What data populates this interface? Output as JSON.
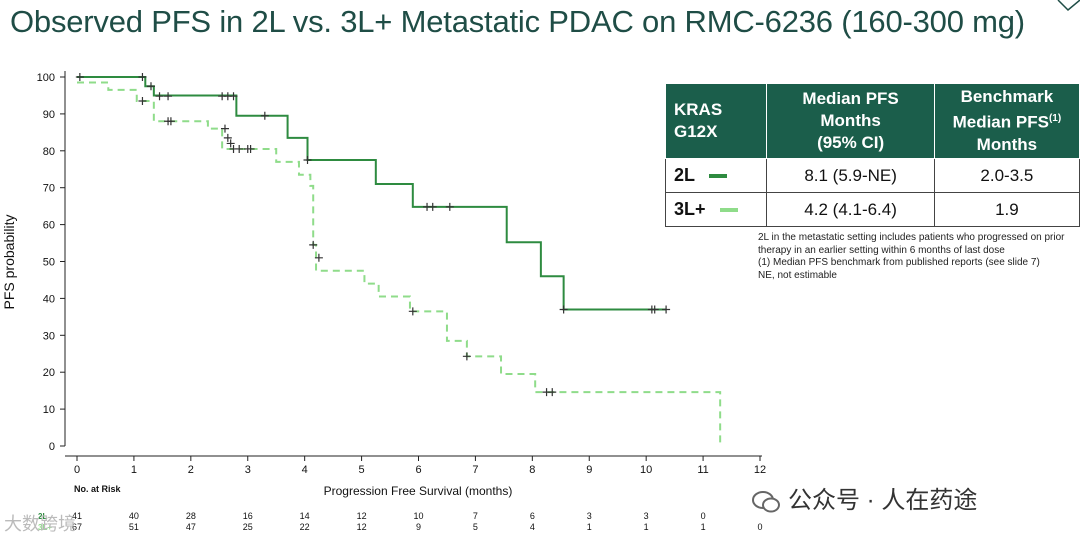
{
  "title": "Observed PFS in 2L vs. 3L+ Metastatic PDAC on RMC-6236 (160-300 mg)",
  "colors": {
    "title": "#1f4d46",
    "header_bg": "#1b5e4b",
    "line_2L": "#2e8b40",
    "line_3L": "#8fdc8a"
  },
  "table": {
    "headers": [
      "KRAS G12X",
      "Median PFS Months (95% CI)",
      "Benchmark Median PFS(1) Months"
    ],
    "rows": [
      {
        "arm": "2L",
        "median": "8.1 (5.9-NE)",
        "benchmark": "2.0-3.5"
      },
      {
        "arm": "3L+",
        "median": "4.2 (4.1-6.4)",
        "benchmark": "1.9"
      }
    ]
  },
  "notes": [
    "2L in the metastatic setting includes patients who progressed on prior therapy in an earlier setting within 6 months of last dose",
    "(1) Median PFS benchmark from published reports (see slide 7)",
    "NE, not estimable"
  ],
  "watermark": "公众号 · 人在药途",
  "watermark_bottom": "大数跨境",
  "chart_data": {
    "type": "line",
    "title": "",
    "xlabel": "Progression Free Survival (months)",
    "ylabel": "PFS probability",
    "xlim": [
      0,
      12
    ],
    "ylim": [
      0,
      100
    ],
    "xticks": [
      0,
      1,
      2,
      3,
      4,
      5,
      6,
      7,
      8,
      9,
      10,
      11,
      12
    ],
    "yticks": [
      0,
      10,
      20,
      30,
      40,
      50,
      60,
      70,
      80,
      90,
      100
    ],
    "series": [
      {
        "name": "2L",
        "style": "solid",
        "steps": [
          [
            0,
            100
          ],
          [
            1.2,
            97.5
          ],
          [
            1.35,
            95
          ],
          [
            2.8,
            89.5
          ],
          [
            3.7,
            83.5
          ],
          [
            4.05,
            77.5
          ],
          [
            5.25,
            71
          ],
          [
            5.9,
            64.8
          ],
          [
            7.55,
            55.2
          ],
          [
            8.15,
            46
          ],
          [
            8.55,
            37
          ],
          [
            10.35,
            37
          ]
        ],
        "censors": [
          [
            0.05,
            100
          ],
          [
            1.15,
            100
          ],
          [
            1.3,
            97.5
          ],
          [
            1.45,
            94.8
          ],
          [
            1.6,
            94.8
          ],
          [
            2.55,
            94.8
          ],
          [
            2.65,
            94.8
          ],
          [
            2.75,
            94.8
          ],
          [
            3.3,
            89.5
          ],
          [
            4.05,
            77.5
          ],
          [
            6.15,
            64.8
          ],
          [
            6.25,
            64.8
          ],
          [
            6.55,
            64.8
          ],
          [
            8.55,
            37
          ],
          [
            10.1,
            37
          ],
          [
            10.15,
            37
          ],
          [
            10.35,
            37
          ]
        ]
      },
      {
        "name": "3L+",
        "style": "dashed",
        "steps": [
          [
            0,
            98.5
          ],
          [
            0.55,
            96.5
          ],
          [
            1.05,
            93.5
          ],
          [
            1.35,
            88
          ],
          [
            2.3,
            86
          ],
          [
            2.55,
            80.5
          ],
          [
            3.5,
            77
          ],
          [
            3.9,
            73.5
          ],
          [
            4.1,
            70.5
          ],
          [
            4.15,
            54.5
          ],
          [
            4.2,
            47.5
          ],
          [
            5.05,
            44
          ],
          [
            5.3,
            40.5
          ],
          [
            5.85,
            36.5
          ],
          [
            6.5,
            28.5
          ],
          [
            6.85,
            24.3
          ],
          [
            7.45,
            19.5
          ],
          [
            8.05,
            14.6
          ],
          [
            11.3,
            14.6
          ],
          [
            11.3,
            0
          ]
        ],
        "censors": [
          [
            1.15,
            93.5
          ],
          [
            1.6,
            88
          ],
          [
            1.65,
            88
          ],
          [
            2.6,
            86
          ],
          [
            2.65,
            83.5
          ],
          [
            2.7,
            82
          ],
          [
            2.75,
            80.5
          ],
          [
            2.85,
            80.5
          ],
          [
            3.0,
            80.5
          ],
          [
            3.05,
            80.5
          ],
          [
            4.15,
            54.5
          ],
          [
            4.25,
            51
          ],
          [
            5.9,
            36.5
          ],
          [
            6.85,
            24.3
          ],
          [
            8.25,
            14.6
          ],
          [
            8.35,
            14.6
          ]
        ]
      }
    ],
    "risk_table": {
      "label": "No. at Risk",
      "rows": [
        {
          "name": "2L",
          "values": [
            "41",
            "40",
            "28",
            "16",
            "14",
            "12",
            "10",
            "7",
            "6",
            "3",
            "3",
            "0",
            ""
          ]
        },
        {
          "name": "3L+",
          "values": [
            "67",
            "51",
            "47",
            "25",
            "22",
            "12",
            "9",
            "5",
            "4",
            "1",
            "1",
            "1",
            "0"
          ]
        }
      ]
    }
  }
}
